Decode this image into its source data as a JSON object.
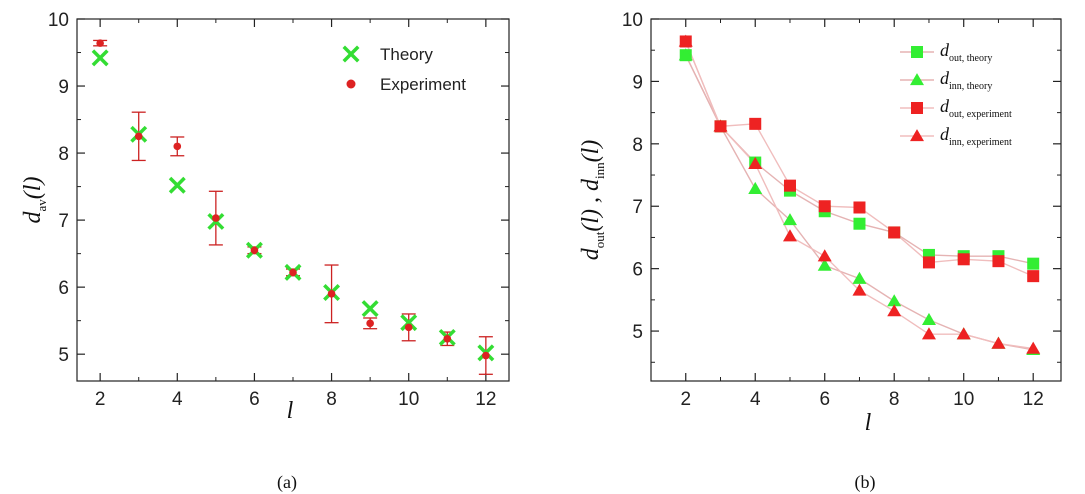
{
  "chart_data": [
    {
      "type": "scatter",
      "panel_label": "(a)",
      "xlabel": "l",
      "ylabel_main": "d",
      "ylabel_sub": "av",
      "ylabel_tail": "(l)",
      "xlim": [
        1.4,
        12.6
      ],
      "ylim": [
        4.6,
        10.0
      ],
      "xticks": [
        "2",
        "4",
        "6",
        "8",
        "10",
        "12"
      ],
      "yticks": [
        "5",
        "6",
        "7",
        "8",
        "9",
        "10"
      ],
      "legend_position": "top-right",
      "series": [
        {
          "name": "Theory",
          "marker": "x",
          "color": "#33dd33",
          "x": [
            2,
            3,
            4,
            5,
            6,
            7,
            8,
            9,
            10,
            11,
            12
          ],
          "y": [
            9.42,
            8.28,
            7.52,
            6.98,
            6.55,
            6.22,
            5.92,
            5.68,
            5.47,
            5.25,
            5.02
          ]
        },
        {
          "name": "Experiment",
          "marker": "circle",
          "color": "#dd2222",
          "x": [
            2,
            3,
            4,
            5,
            6,
            7,
            8,
            9,
            10,
            11,
            12
          ],
          "y": [
            9.64,
            8.25,
            8.1,
            7.03,
            6.55,
            6.22,
            5.9,
            5.46,
            5.4,
            5.23,
            4.98
          ],
          "err": [
            0.04,
            0.36,
            0.14,
            0.4,
            0.05,
            0.05,
            0.43,
            0.08,
            0.2,
            0.1,
            0.28
          ]
        }
      ]
    },
    {
      "type": "line",
      "panel_label": "(b)",
      "xlabel": "l",
      "ylabel_parts": [
        "d",
        "out",
        "(l) , ",
        "d",
        "inn",
        "(l)"
      ],
      "xlim": [
        1.0,
        12.8
      ],
      "ylim": [
        4.2,
        10.0
      ],
      "xticks": [
        "2",
        "4",
        "6",
        "8",
        "10",
        "12"
      ],
      "yticks": [
        "5",
        "6",
        "7",
        "8",
        "9",
        "10"
      ],
      "legend_position": "top-right",
      "series": [
        {
          "name_main": "d",
          "name_sub": "out, theory",
          "marker": "square",
          "color": "#33ee33",
          "line_color": "#e5b3b3",
          "x": [
            2,
            3,
            4,
            5,
            6,
            7,
            8,
            9,
            10,
            11,
            12
          ],
          "y": [
            9.42,
            8.28,
            7.7,
            7.25,
            6.92,
            6.72,
            6.58,
            6.22,
            6.2,
            6.2,
            6.08
          ]
        },
        {
          "name_main": "d",
          "name_sub": "inn, theory",
          "marker": "triangle",
          "color": "#33ee33",
          "line_color": "#e5b3b3",
          "x": [
            2,
            3,
            4,
            5,
            6,
            7,
            8,
            9,
            10,
            11,
            12
          ],
          "y": [
            9.42,
            8.28,
            7.28,
            6.78,
            6.05,
            5.84,
            5.48,
            5.18,
            4.95,
            4.8,
            4.7
          ]
        },
        {
          "name_main": "d",
          "name_sub": "out, experiment",
          "marker": "square",
          "color": "#ee2222",
          "line_color": "#f0bdbd",
          "x": [
            2,
            3,
            4,
            5,
            6,
            7,
            8,
            9,
            10,
            11,
            12
          ],
          "y": [
            9.64,
            8.28,
            8.32,
            7.33,
            7.0,
            6.98,
            6.58,
            6.1,
            6.15,
            6.12,
            5.88
          ]
        },
        {
          "name_main": "d",
          "name_sub": "inn, experiment",
          "marker": "triangle",
          "color": "#ee2222",
          "line_color": "#f0bdbd",
          "x": [
            2,
            3,
            4,
            5,
            6,
            7,
            8,
            9,
            10,
            11,
            12
          ],
          "y": [
            9.64,
            8.28,
            7.68,
            6.52,
            6.2,
            5.65,
            5.32,
            4.95,
            4.95,
            4.8,
            4.72
          ]
        }
      ]
    }
  ]
}
